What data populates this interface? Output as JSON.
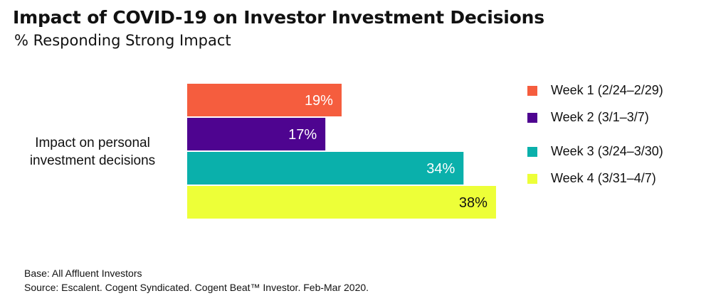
{
  "chart_data": {
    "type": "bar",
    "orientation": "horizontal",
    "title": "Impact of COVID-19 on Investor Investment Decisions",
    "subtitle": "% Responding Strong Impact",
    "categories": [
      "Impact on personal investment decisions"
    ],
    "value_suffix": "%",
    "xlim": [
      0,
      40
    ],
    "grid": false,
    "legend_position": "right",
    "series": [
      {
        "name": "Week 1 (2/24–2/29)",
        "values": [
          19
        ],
        "color": "#f55d3e",
        "label_color": "#ffffff"
      },
      {
        "name": "Week 2 (3/1–3/7)",
        "values": [
          17
        ],
        "color": "#4e0490",
        "label_color": "#ffffff"
      },
      {
        "name": "Week 3 (3/24–3/30)",
        "values": [
          34
        ],
        "color": "#0ab0ab",
        "label_color": "#ffffff"
      },
      {
        "name": "Week 4 (3/31–4/7)",
        "values": [
          38
        ],
        "color": "#edff38",
        "label_color": "#111111"
      }
    ]
  },
  "footnotes": {
    "base": "Base: All Affluent Investors",
    "source": "Source: Escalent. Cogent Syndicated. Cogent Beat™ Investor. Feb-Mar 2020."
  }
}
